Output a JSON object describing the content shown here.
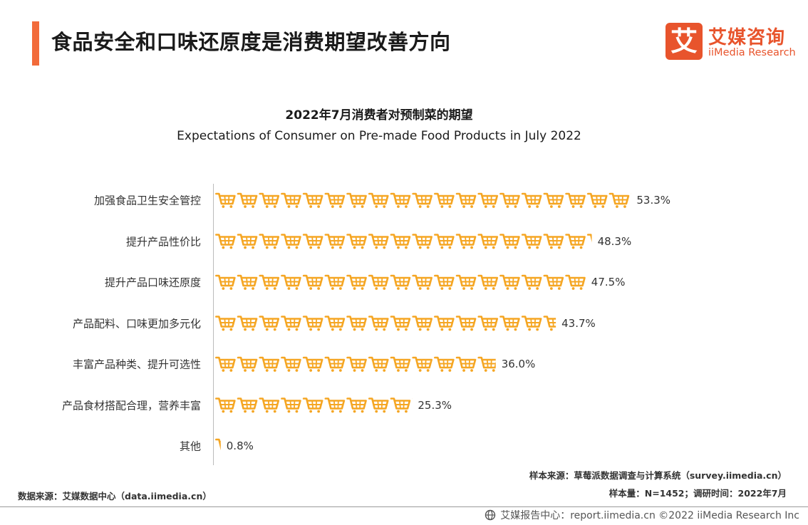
{
  "header": {
    "title": "食品安全和口味还原度是消费期望改善方向",
    "accent_color": "#F26B3A"
  },
  "logo": {
    "glyph": "艾",
    "name_cn": "艾媒咨询",
    "name_en": "iiMedia Research",
    "color": "#E8542C"
  },
  "chart_data": {
    "type": "bar",
    "orientation": "horizontal",
    "title": "2022年7月消费者对预制菜的期望",
    "subtitle": "Expectations of Consumer on Pre-made Food Products in July 2022",
    "categories": [
      "加强食品卫生安全管控",
      "提升产品性价比",
      "提升产品口味还原度",
      "产品配料、口味更加多元化",
      "丰富产品种类、提升可选性",
      "产品食材搭配合理，营养丰富",
      "其他"
    ],
    "values": [
      53.3,
      48.3,
      47.5,
      43.7,
      36.0,
      25.3,
      0.8
    ],
    "value_labels": [
      "53.3%",
      "48.3%",
      "47.5%",
      "43.7%",
      "36.0%",
      "25.3%",
      "0.8%"
    ],
    "unit": "%",
    "bar_style": "shopping-cart-icons",
    "bar_color": "#F5A623",
    "grid": false,
    "legend": "none"
  },
  "sources": {
    "sample_source": "样本来源：草莓派数据调查与计算系统（survey.iimedia.cn）",
    "sample_info": "样本量：N=1452；调研时间：2022年7月",
    "data_source": "数据来源：艾媒数据中心（data.iimedia.cn）"
  },
  "footer": {
    "text": "艾媒报告中心：report.iimedia.cn  ©2022  iiMedia Research  Inc",
    "icon": "globe-icon"
  }
}
